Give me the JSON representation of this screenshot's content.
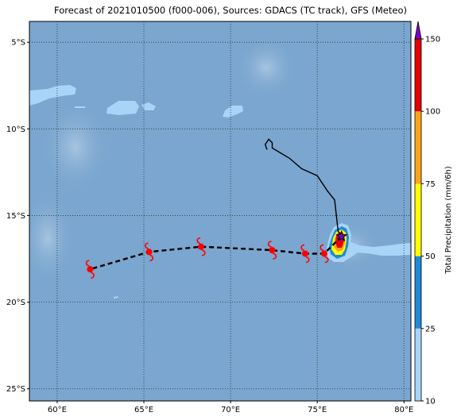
{
  "title": "Forecast of 2021010500 (f000-006), Sources: GDACS (TC track), GFS (Meteo)",
  "map": {
    "lon_range": [
      58.4,
      80.4
    ],
    "lat_range": [
      -25.7,
      -3.8
    ],
    "lon_ticks": [
      {
        "value": 60,
        "label": "60°E"
      },
      {
        "value": 65,
        "label": "65°E"
      },
      {
        "value": 70,
        "label": "70°E"
      },
      {
        "value": 75,
        "label": "75°E"
      },
      {
        "value": 80,
        "label": "80°E"
      }
    ],
    "lat_ticks": [
      {
        "value": -5,
        "label": "5°S"
      },
      {
        "value": -10,
        "label": "10°S"
      },
      {
        "value": -15,
        "label": "15°S"
      },
      {
        "value": -20,
        "label": "20°S"
      },
      {
        "value": -25,
        "label": "25°S"
      }
    ],
    "ocean_color": "#7aa6cf",
    "grid_lines": "dotted"
  },
  "colorbar": {
    "label": "Total Precipitation (mm/6h)",
    "ticks": [
      10,
      25,
      50,
      75,
      100,
      150
    ],
    "bands": [
      {
        "from": 10,
        "to": 25,
        "color": "#a8d4f8"
      },
      {
        "from": 25,
        "to": 50,
        "color": "#1f8ad6"
      },
      {
        "from": 50,
        "to": 75,
        "color": "#ffff00"
      },
      {
        "from": 75,
        "to": 100,
        "color": "#ffa31a"
      },
      {
        "from": 100,
        "to": 150,
        "color": "#e60000"
      }
    ],
    "extend_color": "#7a00c8"
  },
  "observed_track": [
    {
      "lon": 72.1,
      "lat": -11.2
    },
    {
      "lon": 72.0,
      "lat": -10.9
    },
    {
      "lon": 72.2,
      "lat": -10.6
    },
    {
      "lon": 72.4,
      "lat": -10.8
    },
    {
      "lon": 72.4,
      "lat": -11.1
    },
    {
      "lon": 73.4,
      "lat": -11.7
    },
    {
      "lon": 74.1,
      "lat": -12.3
    },
    {
      "lon": 75.0,
      "lat": -12.7
    },
    {
      "lon": 75.6,
      "lat": -13.6
    },
    {
      "lon": 76.0,
      "lat": -14.1
    },
    {
      "lon": 76.2,
      "lat": -15.9
    },
    {
      "lon": 76.4,
      "lat": -16.2
    }
  ],
  "forecast_track": [
    {
      "lon": 76.4,
      "lat": -16.2
    },
    {
      "lon": 75.4,
      "lat": -17.2
    },
    {
      "lon": 74.3,
      "lat": -17.2
    },
    {
      "lon": 72.4,
      "lat": -17.0
    },
    {
      "lon": 68.3,
      "lat": -16.8
    },
    {
      "lon": 65.3,
      "lat": -17.1
    },
    {
      "lon": 61.9,
      "lat": -18.1
    }
  ],
  "storm_symbols": [
    {
      "lon": 75.4,
      "lat": -17.2
    },
    {
      "lon": 74.3,
      "lat": -17.2
    },
    {
      "lon": 72.4,
      "lat": -17.0
    },
    {
      "lon": 68.3,
      "lat": -16.8
    },
    {
      "lon": 65.3,
      "lat": -17.1
    },
    {
      "lon": 61.9,
      "lat": -18.1
    }
  ],
  "current_position": {
    "lon": 76.4,
    "lat": -16.2
  },
  "track_colors": {
    "observed": "#000000",
    "forecast": "#000000",
    "storm": "#ff0000"
  }
}
